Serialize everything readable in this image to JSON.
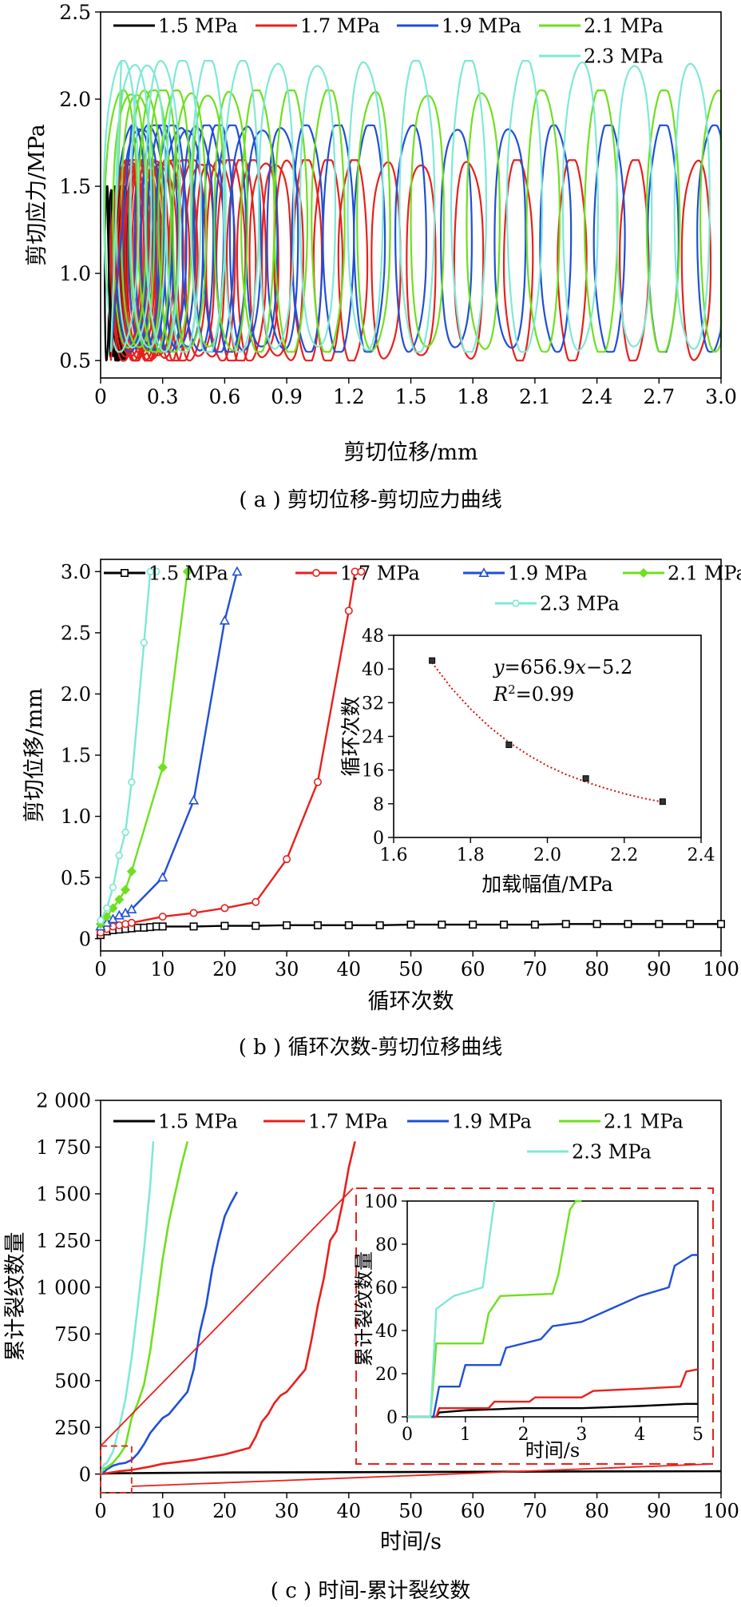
{
  "captions": {
    "a": "( a ) 剪切位移-剪切应力曲线",
    "b": "( b ) 循环次数-剪切位移曲线",
    "c": "( c ) 时间-累计裂纹数"
  },
  "colors": {
    "s15": "#000000",
    "s17": "#e8201c",
    "s19": "#1f4fd6",
    "s21": "#6ee01e",
    "s23": "#7fe8d6",
    "fit": "#d01010",
    "frame": "#000000",
    "zoom": "#e8201c"
  },
  "chart_data": [
    {
      "id": "a",
      "type": "line",
      "xlabel": "剪切位移/mm",
      "ylabel": "剪切应力/MPa",
      "xlim": [
        0,
        3.0
      ],
      "ylim": [
        0.4,
        2.5
      ],
      "xticks": [
        0,
        0.3,
        0.6,
        0.9,
        1.2,
        1.5,
        1.8,
        2.1,
        2.4,
        2.7,
        3.0
      ],
      "xtick_labels": [
        "0",
        "0.3",
        "0.6",
        "0.9",
        "1.2",
        "1.5",
        "1.8",
        "2.1",
        "2.4",
        "2.7",
        "3.0"
      ],
      "yticks": [
        0.5,
        1.0,
        1.5,
        2.0,
        2.5
      ],
      "ytick_labels": [
        "0.5",
        "1.0",
        "1.5",
        "2.0",
        "2.5"
      ],
      "legend": "top-left",
      "series": [
        {
          "name": "1.5 MPa",
          "color_key": "s15",
          "min": 0.5,
          "max": 1.5,
          "loops": [
            0.03,
            0.05,
            0.06,
            0.07,
            0.08,
            0.085,
            0.09,
            0.095,
            0.1,
            0.1,
            0.105,
            0.11,
            0.115,
            0.12
          ],
          "width": 0.02
        },
        {
          "name": "1.7 MPa",
          "color_key": "s17",
          "min": 0.5,
          "max": 1.65,
          "loops": [
            0.12,
            0.13,
            0.14,
            0.15,
            0.16,
            0.17,
            0.18,
            0.19,
            0.2,
            0.21,
            0.22,
            0.23,
            0.24,
            0.26,
            0.28,
            0.3,
            0.33,
            0.36,
            0.4,
            0.44,
            0.48,
            0.53,
            0.58,
            0.63,
            0.68,
            0.73,
            0.79,
            0.85,
            0.91,
            1.0,
            1.1,
            1.22,
            1.38,
            1.55,
            1.78,
            2.02,
            2.28,
            2.58,
            2.88
          ],
          "width": 0.14
        },
        {
          "name": "1.9 MPa",
          "color_key": "s19",
          "min": 0.55,
          "max": 1.85,
          "loops": [
            0.15,
            0.18,
            0.21,
            0.24,
            0.27,
            0.3,
            0.34,
            0.38,
            0.42,
            0.47,
            0.52,
            0.57,
            0.63,
            0.7,
            0.78,
            0.88,
            1.0,
            1.15,
            1.3,
            1.5,
            1.72,
            1.98,
            2.2,
            2.46,
            2.72,
            2.96
          ],
          "width": 0.15
        },
        {
          "name": "2.1 MPa",
          "color_key": "s21",
          "min": 0.55,
          "max": 2.05,
          "loops": [
            0.1,
            0.14,
            0.18,
            0.22,
            0.26,
            0.3,
            0.36,
            0.43,
            0.52,
            0.63,
            0.76,
            0.92,
            1.1,
            1.32,
            1.58,
            1.85,
            2.14,
            2.42,
            2.72,
            2.98
          ],
          "width": 0.16
        },
        {
          "name": "2.3 MPa",
          "color_key": "s23",
          "min": 0.55,
          "max": 2.22,
          "loops": [
            0.1,
            0.16,
            0.23,
            0.3,
            0.4,
            0.52,
            0.68,
            0.85,
            1.05,
            1.28,
            1.53,
            1.78,
            2.05,
            2.32,
            2.58,
            2.86
          ],
          "width": 0.17
        }
      ]
    },
    {
      "id": "b",
      "type": "line",
      "xlabel": "循环次数",
      "ylabel": "剪切位移/mm",
      "xlim": [
        0,
        100
      ],
      "ylim": [
        -0.1,
        3.1
      ],
      "xticks": [
        0,
        10,
        20,
        30,
        40,
        50,
        60,
        70,
        80,
        90,
        100
      ],
      "yticks": [
        0,
        0.5,
        1.0,
        1.5,
        2.0,
        2.5,
        3.0
      ],
      "ytick_labels": [
        "0",
        "0.5",
        "1.0",
        "1.5",
        "2.0",
        "2.5",
        "3.0"
      ],
      "legend": "top-left",
      "series": [
        {
          "name": "1.5 MPa",
          "color_key": "s15",
          "marker": "square",
          "x": [
            0,
            1,
            2,
            3,
            4,
            5,
            6,
            7,
            8,
            9,
            10,
            15,
            20,
            25,
            30,
            35,
            40,
            45,
            50,
            55,
            60,
            65,
            70,
            75,
            80,
            85,
            90,
            95,
            100
          ],
          "y": [
            0.03,
            0.06,
            0.07,
            0.075,
            0.08,
            0.085,
            0.09,
            0.09,
            0.095,
            0.1,
            0.1,
            0.1,
            0.105,
            0.105,
            0.11,
            0.11,
            0.11,
            0.11,
            0.115,
            0.115,
            0.115,
            0.115,
            0.115,
            0.12,
            0.12,
            0.12,
            0.12,
            0.12,
            0.12
          ]
        },
        {
          "name": "1.7 MPa",
          "color_key": "s17",
          "marker": "circle",
          "x": [
            0,
            1,
            2,
            3,
            4,
            5,
            10,
            15,
            20,
            25,
            30,
            35,
            40,
            41,
            42
          ],
          "y": [
            0.05,
            0.08,
            0.1,
            0.11,
            0.12,
            0.13,
            0.18,
            0.21,
            0.25,
            0.3,
            0.65,
            1.28,
            2.68,
            3.0,
            3.0
          ]
        },
        {
          "name": "1.9 MPa",
          "color_key": "s19",
          "marker": "triangle",
          "x": [
            0,
            1,
            2,
            3,
            4,
            5,
            10,
            15,
            20,
            22
          ],
          "y": [
            0.1,
            0.13,
            0.16,
            0.19,
            0.21,
            0.24,
            0.5,
            1.13,
            2.6,
            3.0
          ]
        },
        {
          "name": "2.1 MPa",
          "color_key": "s21",
          "marker": "diamond",
          "x": [
            0,
            1,
            2,
            3,
            4,
            5,
            10,
            14
          ],
          "y": [
            0.12,
            0.18,
            0.25,
            0.32,
            0.4,
            0.55,
            1.4,
            3.0
          ]
        },
        {
          "name": "2.3 MPa",
          "color_key": "s23",
          "marker": "hexagon",
          "x": [
            0,
            1,
            2,
            3,
            4,
            5,
            7,
            8,
            9
          ],
          "y": [
            0.15,
            0.25,
            0.42,
            0.68,
            0.87,
            1.28,
            2.42,
            3.0,
            3.0
          ]
        }
      ],
      "inset": {
        "type": "scatter",
        "xlabel": "加载幅值/MPa",
        "ylabel": "循环次数",
        "xlim": [
          1.6,
          2.4
        ],
        "ylim": [
          0,
          48
        ],
        "xticks": [
          1.6,
          1.8,
          2.0,
          2.2,
          2.4
        ],
        "xtick_labels": [
          "1.6",
          "1.8",
          "2.0",
          "2.2",
          "2.4"
        ],
        "yticks": [
          0,
          8,
          16,
          24,
          32,
          40,
          48
        ],
        "points": {
          "x": [
            1.7,
            1.9,
            2.1,
            2.3
          ],
          "y": [
            42,
            22,
            14,
            8.5
          ]
        },
        "fit": {
          "x": [
            1.7,
            1.75,
            1.8,
            1.85,
            1.9,
            1.95,
            2.0,
            2.05,
            2.1,
            2.15,
            2.2,
            2.25,
            2.3
          ],
          "y": [
            41.5,
            35.5,
            30.5,
            26.2,
            22.6,
            19.6,
            17.0,
            14.9,
            13.2,
            11.7,
            10.4,
            9.3,
            8.4
          ]
        },
        "eq_y": "y",
        "eq_rest": "=656.9",
        "eq_x": "x",
        "eq_tail": "−5.2",
        "r2_r": "R",
        "r2_sup": "2",
        "r2_val": "=0.99"
      }
    },
    {
      "id": "c",
      "type": "line",
      "xlabel": "时间/s",
      "ylabel": "累计裂纹数量",
      "xlim": [
        0,
        100
      ],
      "ylim": [
        -100,
        2000
      ],
      "xticks": [
        0,
        10,
        20,
        30,
        40,
        50,
        60,
        70,
        80,
        90,
        100
      ],
      "yticks": [
        0,
        250,
        500,
        750,
        1000,
        1250,
        1500,
        1750,
        2000
      ],
      "ytick_labels": [
        "0",
        "250",
        "500",
        "750",
        "1 000",
        "1 250",
        "1 500",
        "1 750",
        "2 000"
      ],
      "legend": "top-left",
      "series": [
        {
          "name": "1.5 MPa",
          "color_key": "s15",
          "x": [
            0,
            0.5,
            1,
            2,
            5,
            10,
            20,
            40,
            60,
            80,
            100
          ],
          "y": [
            0,
            2,
            3,
            4,
            5,
            6,
            8,
            10,
            12,
            14,
            15
          ]
        },
        {
          "name": "1.7 MPa",
          "color_key": "s17",
          "x": [
            0,
            1,
            3,
            5,
            8,
            10,
            15,
            20,
            24,
            25,
            26,
            27,
            28,
            29,
            30,
            31,
            32,
            33,
            34,
            35,
            36,
            37,
            38,
            39,
            40,
            41
          ],
          "y": [
            0,
            5,
            15,
            22,
            40,
            55,
            75,
            105,
            140,
            200,
            280,
            320,
            380,
            420,
            440,
            480,
            520,
            560,
            720,
            900,
            1050,
            1250,
            1300,
            1450,
            1640,
            1780
          ]
        },
        {
          "name": "1.9 MPa",
          "color_key": "s19",
          "x": [
            0,
            0.5,
            1,
            2,
            3,
            4,
            5,
            6,
            7,
            8,
            9,
            10,
            11,
            12,
            13,
            14,
            15,
            16,
            17,
            18,
            19,
            20,
            21,
            22
          ],
          "y": [
            0,
            10,
            25,
            45,
            55,
            60,
            75,
            110,
            160,
            220,
            260,
            300,
            320,
            360,
            400,
            440,
            560,
            760,
            900,
            1100,
            1250,
            1380,
            1450,
            1510
          ]
        },
        {
          "name": "2.1 MPa",
          "color_key": "s21",
          "x": [
            0,
            0.5,
            1,
            2,
            3,
            4,
            5,
            6,
            7,
            8,
            9,
            10,
            11,
            12,
            13,
            14
          ],
          "y": [
            0,
            30,
            35,
            60,
            100,
            150,
            300,
            380,
            480,
            660,
            900,
            1150,
            1350,
            1500,
            1650,
            1780
          ]
        },
        {
          "name": "2.3 MPa",
          "color_key": "s23",
          "x": [
            0,
            0.5,
            1,
            2,
            3,
            4,
            5,
            6,
            7,
            8,
            8.5
          ],
          "y": [
            0,
            50,
            60,
            120,
            250,
            400,
            620,
            900,
            1200,
            1550,
            1780
          ]
        }
      ],
      "inset": {
        "type": "line",
        "xlabel": "时间/s",
        "ylabel": "累计裂纹数量",
        "xlim": [
          0,
          5
        ],
        "ylim": [
          0,
          100
        ],
        "xticks": [
          0,
          1,
          2,
          3,
          4,
          5
        ],
        "yticks": [
          0,
          20,
          40,
          60,
          80,
          100
        ],
        "series": [
          {
            "color_key": "s15",
            "x": [
              0,
              0.5,
              0.55,
              1,
              2,
              3,
              4,
              4.8,
              5
            ],
            "y": [
              0,
              0,
              2,
              3,
              4,
              4,
              5,
              6,
              6
            ]
          },
          {
            "color_key": "s17",
            "x": [
              0,
              0.5,
              0.55,
              1.4,
              1.5,
              2.1,
              2.2,
              3,
              3.2,
              4,
              4.7,
              4.8,
              5
            ],
            "y": [
              0,
              0,
              4,
              4,
              7,
              7,
              9,
              9,
              12,
              13,
              14,
              21,
              22
            ]
          },
          {
            "color_key": "s19",
            "x": [
              0,
              0.45,
              0.55,
              0.9,
              1,
              1.6,
              1.7,
              2.3,
              2.5,
              3,
              3.5,
              4,
              4.5,
              4.6,
              4.9,
              5
            ],
            "y": [
              0,
              0,
              14,
              14,
              24,
              24,
              32,
              36,
              42,
              44,
              50,
              56,
              60,
              70,
              75,
              75
            ]
          },
          {
            "color_key": "s21",
            "x": [
              0,
              0.4,
              0.5,
              1.3,
              1.4,
              1.6,
              2.5,
              2.6,
              2.8,
              2.9,
              3
            ],
            "y": [
              0,
              0,
              34,
              34,
              48,
              56,
              57,
              66,
              96,
              100,
              100
            ]
          },
          {
            "color_key": "s23",
            "x": [
              0,
              0.4,
              0.5,
              0.8,
              1.3,
              1.4,
              1.5
            ],
            "y": [
              0,
              0,
              50,
              56,
              60,
              80,
              100
            ]
          }
        ]
      }
    }
  ]
}
